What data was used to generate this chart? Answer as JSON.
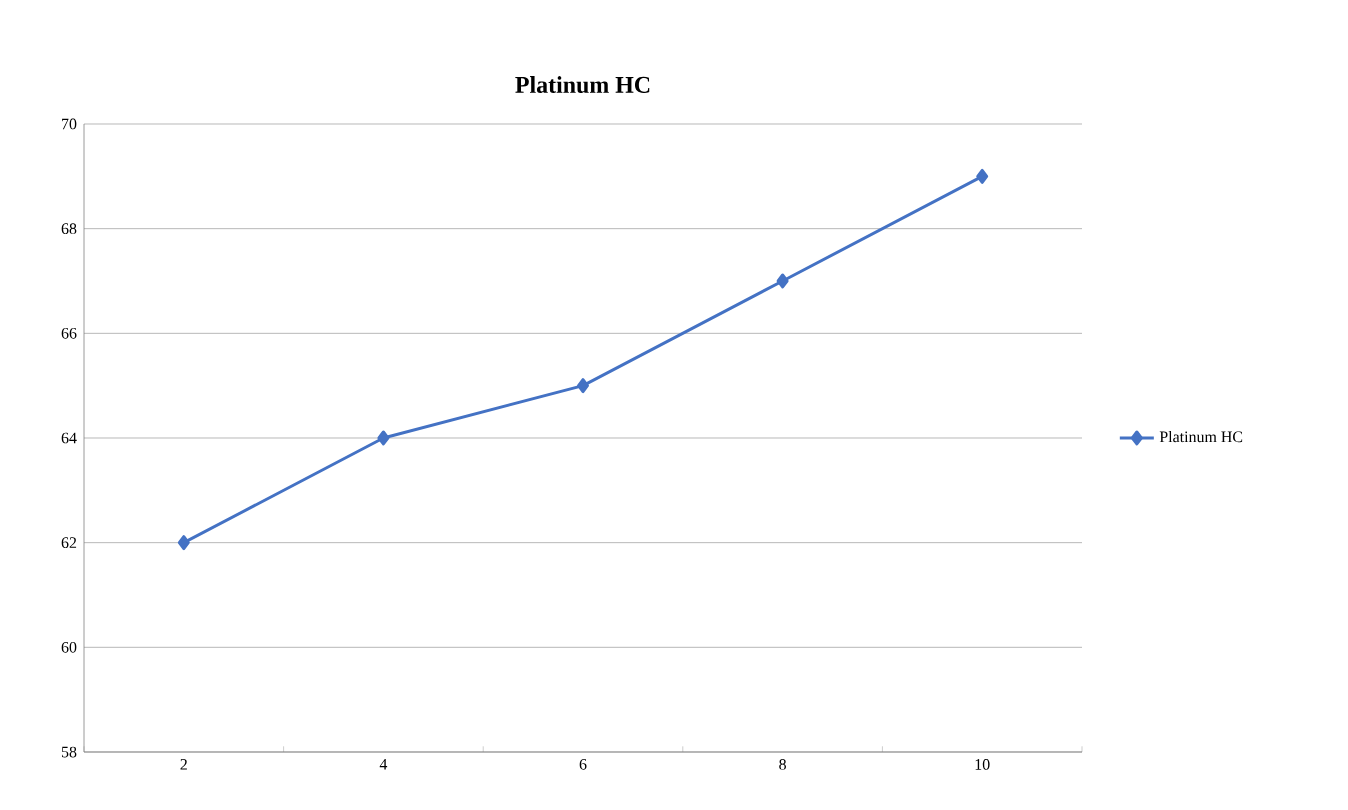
{
  "chart_data": {
    "type": "line",
    "title": "Platinum HC",
    "categories": [
      "2",
      "4",
      "6",
      "8",
      "10"
    ],
    "series": [
      {
        "name": "Platinum HC",
        "color": "#4472c4",
        "values": [
          62,
          64,
          65,
          67,
          69
        ]
      }
    ],
    "ylim": [
      58,
      70
    ],
    "yticks": [
      58,
      60,
      62,
      64,
      66,
      68,
      70
    ],
    "grid": "y",
    "legend": "right",
    "marker": "diamond",
    "line_style": "solid"
  }
}
